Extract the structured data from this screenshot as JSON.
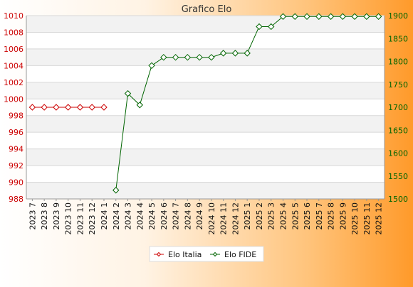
{
  "chart_data": {
    "type": "line",
    "title": "Grafico Elo",
    "categories": [
      "2023 7",
      "2023 8",
      "2023 9",
      "2023 10",
      "2023 11",
      "2023 12",
      "2024 1",
      "2024 2",
      "2024 3",
      "2024 4",
      "2024 5",
      "2024 6",
      "2024 7",
      "2024 8",
      "2024 9",
      "2024 10",
      "2024 11",
      "2024 12",
      "2025 1",
      "2025 2",
      "2025 3",
      "2025 4",
      "2025 5",
      "2025 6",
      "2025 7",
      "2025 8",
      "2025 9",
      "2025 10",
      "2025 11",
      "2025 12"
    ],
    "y_left": {
      "min": 988,
      "max": 1010,
      "ticks": [
        988,
        990,
        992,
        994,
        996,
        998,
        1000,
        1002,
        1004,
        1006,
        1008,
        1010
      ],
      "color": "#cc0000"
    },
    "y_right": {
      "min": 1500,
      "max": 1900,
      "ticks": [
        1500,
        1550,
        1600,
        1650,
        1700,
        1750,
        1800,
        1850,
        1900
      ],
      "color": "#006400"
    },
    "series": [
      {
        "name": "Elo Italia",
        "axis": "left",
        "color": "#cc0000",
        "values": [
          999,
          999,
          999,
          999,
          999,
          999,
          999,
          null,
          null,
          null,
          null,
          null,
          null,
          null,
          null,
          null,
          null,
          null,
          null,
          null,
          null,
          null,
          null,
          null,
          null,
          null,
          null,
          null,
          null,
          null
        ]
      },
      {
        "name": "Elo FIDE",
        "axis": "right",
        "color": "#006400",
        "values": [
          null,
          null,
          null,
          null,
          null,
          null,
          null,
          1519,
          1730,
          1705,
          1791,
          1809,
          1809,
          1809,
          1809,
          1809,
          1818,
          1818,
          1818,
          1876,
          1876,
          1898,
          1898,
          1898,
          1898,
          1898,
          1898,
          1898,
          1898,
          1898
        ]
      }
    ],
    "grid": true,
    "legend_position": "bottom-center"
  }
}
